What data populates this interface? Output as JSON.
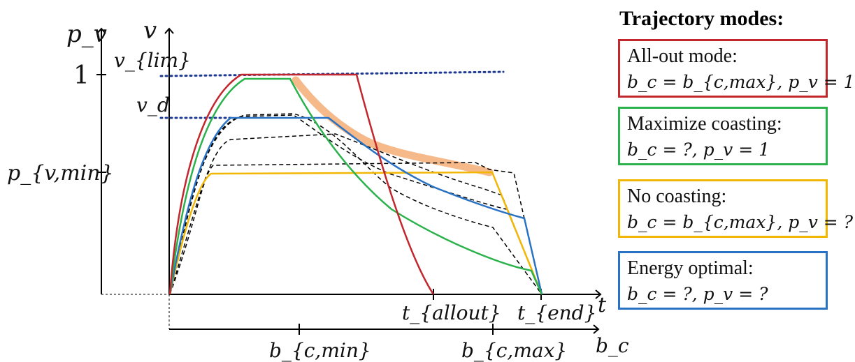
{
  "axes": {
    "pv_label": "p_v",
    "v_label": "v",
    "t_label": "t",
    "bc_label": "b_c",
    "tick_1": "1",
    "tick_pvmin": "p_{v,min}",
    "v_lim": "v_{lim}",
    "v_d": "v_d",
    "t_allout": "t_{allout}",
    "t_end": "t_{end}",
    "bc_min": "b_{c,min}",
    "bc_max": "b_{c,max}"
  },
  "legend": {
    "title": "Trajectory modes:",
    "items": [
      {
        "name": "All-out mode:",
        "formula": "b_c = b_{c,max},  p_v = 1",
        "color": "#c1272d"
      },
      {
        "name": "Maximize coasting:",
        "formula": "b_c = ?,  p_v = 1",
        "color": "#2bb24c"
      },
      {
        "name": "No coasting:",
        "formula": "b_c = b_{c,max},  p_v = ?",
        "color": "#f2b705"
      },
      {
        "name": "Energy optimal:",
        "formula": "b_c = ?,  p_v = ?",
        "color": "#2a72c4"
      }
    ]
  },
  "colors": {
    "red": "#c1272d",
    "green": "#2bb24c",
    "yellow": "#f2b705",
    "blue": "#2a72c4",
    "highlight": "#f6b98a",
    "dotted": "#1f3a93",
    "dashed": "#000000"
  }
}
